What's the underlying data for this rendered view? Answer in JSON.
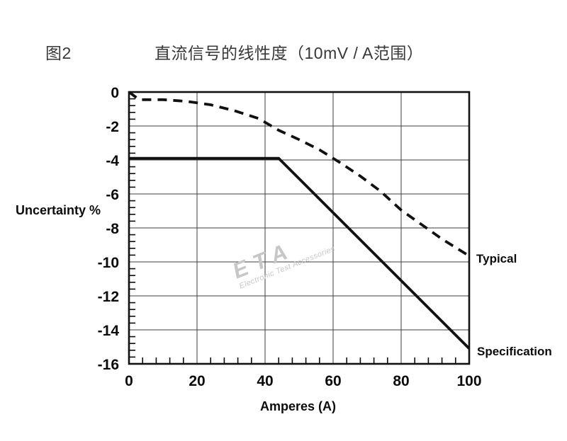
{
  "figure": {
    "label": "图2",
    "title": "直流信号的线性度（10mV / A范围）"
  },
  "watermark": {
    "brand": "ETA",
    "tagline": "Electronic Test Accessories"
  },
  "chart_data": {
    "type": "line",
    "title": "直流信号的线性度（10mV / A范围）",
    "xlabel": "Amperes (A)",
    "ylabel": "Uncertainty %",
    "xlim": [
      0,
      100
    ],
    "ylim": [
      -16,
      0
    ],
    "x_ticks": [
      0,
      20,
      40,
      60,
      80,
      100
    ],
    "y_ticks": [
      0,
      -2,
      -4,
      -6,
      -8,
      -10,
      -12,
      -14,
      -16
    ],
    "x_minor_step": 4,
    "y_minor_step": 0.4,
    "grid": true,
    "grid_color": "#3d3d3d",
    "line_color": "#111111",
    "legend_position": "right-of-curve-ends",
    "series": [
      {
        "name": "Typical",
        "style": "dashed",
        "points": [
          [
            0,
            0
          ],
          [
            3,
            -0.45
          ],
          [
            10,
            -0.45
          ],
          [
            17,
            -0.55
          ],
          [
            24,
            -0.75
          ],
          [
            31,
            -1.1
          ],
          [
            38,
            -1.55
          ],
          [
            44,
            -2.25
          ],
          [
            50,
            -2.8
          ],
          [
            56,
            -3.4
          ],
          [
            62,
            -4.15
          ],
          [
            68,
            -4.95
          ],
          [
            74,
            -5.85
          ],
          [
            80,
            -6.95
          ],
          [
            86,
            -7.8
          ],
          [
            92,
            -8.65
          ],
          [
            100,
            -9.65
          ]
        ]
      },
      {
        "name": "Specification",
        "style": "solid",
        "points": [
          [
            0,
            -3.9
          ],
          [
            44,
            -3.9
          ],
          [
            100,
            -15.1
          ]
        ]
      }
    ]
  }
}
